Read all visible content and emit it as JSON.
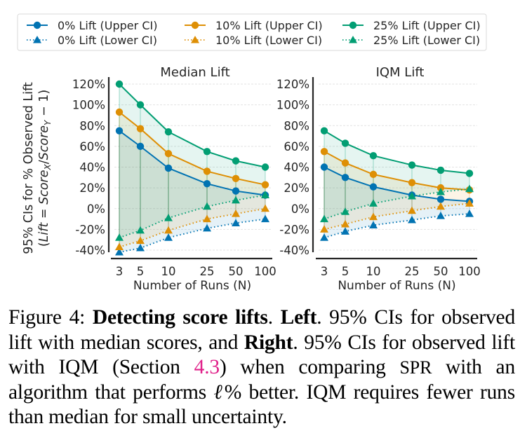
{
  "legend": {
    "entries": [
      {
        "label": "0% Lift (Upper CI)",
        "color": "#0173b2",
        "style": "solid",
        "marker": "circle"
      },
      {
        "label": "10% Lift (Upper CI)",
        "color": "#de8f05",
        "style": "solid",
        "marker": "circle"
      },
      {
        "label": "25% Lift (Upper CI)",
        "color": "#029e73",
        "style": "solid",
        "marker": "circle"
      },
      {
        "label": "0% Lift (Lower CI)",
        "color": "#0173b2",
        "style": "dotted",
        "marker": "triangle"
      },
      {
        "label": "10% Lift (Lower CI)",
        "color": "#de8f05",
        "style": "dotted",
        "marker": "triangle"
      },
      {
        "label": "25% Lift (Lower CI)",
        "color": "#029e73",
        "style": "dotted",
        "marker": "triangle"
      }
    ]
  },
  "ylabel_line1": "95% CIs for % Observed Lift",
  "ylabel_line2": "(Lift = Score",
  "ylabel_sub_x": "X",
  "ylabel_mid": "/Score",
  "ylabel_sub_y": "Y",
  "ylabel_end": " − 1)",
  "chart_data": [
    {
      "type": "line",
      "title": "Median Lift",
      "xlabel": "Number of Runs (N)",
      "ylabel": "95% CIs for % Observed Lift (Lift = Score_X/Score_Y − 1)",
      "x": [
        3,
        5,
        10,
        25,
        50,
        100
      ],
      "x_tick_labels": [
        "3",
        "5",
        "10",
        "25",
        "50",
        "100"
      ],
      "x_scale": "log",
      "ylim": [
        -40,
        120
      ],
      "y_ticks": [
        120,
        100,
        80,
        60,
        40,
        20,
        0,
        -20,
        -40
      ],
      "y_tick_labels": [
        "120%",
        "100%",
        "80%",
        "60%",
        "40%",
        "20%",
        "0%",
        "-20%",
        "-40%"
      ],
      "grid": "horizontal-dashed",
      "series": [
        {
          "name": "0% Lift (Upper CI)",
          "values": [
            75,
            60,
            39,
            24,
            17,
            13
          ]
        },
        {
          "name": "10% Lift (Upper CI)",
          "values": [
            93,
            77,
            53,
            36,
            29,
            23
          ]
        },
        {
          "name": "25% Lift (Upper CI)",
          "values": [
            120,
            100,
            74,
            55,
            46,
            40
          ]
        },
        {
          "name": "0% Lift (Lower CI)",
          "values": [
            -42,
            -38,
            -28,
            -19,
            -14,
            -10
          ]
        },
        {
          "name": "10% Lift (Lower CI)",
          "values": [
            -37,
            -31,
            -21,
            -10,
            -5,
            0
          ]
        },
        {
          "name": "25% Lift (Lower CI)",
          "values": [
            -28,
            -21,
            -9,
            2,
            8,
            13
          ]
        }
      ]
    },
    {
      "type": "line",
      "title": "IQM Lift",
      "xlabel": "Number of Runs (N)",
      "x": [
        3,
        5,
        10,
        25,
        50,
        100
      ],
      "x_tick_labels": [
        "3",
        "5",
        "10",
        "25",
        "50",
        "100"
      ],
      "x_scale": "log",
      "ylim": [
        -40,
        120
      ],
      "y_ticks": [
        120,
        100,
        80,
        60,
        40,
        20,
        0,
        -20,
        -40
      ],
      "y_tick_labels": [
        "120%",
        "100%",
        "80%",
        "60%",
        "40%",
        "20%",
        "0%",
        "-20%",
        "-40%"
      ],
      "grid": "horizontal-dashed",
      "series": [
        {
          "name": "0% Lift (Upper CI)",
          "values": [
            40,
            30,
            21,
            13,
            9,
            7
          ]
        },
        {
          "name": "10% Lift (Upper CI)",
          "values": [
            55,
            44,
            33,
            25,
            20,
            18
          ]
        },
        {
          "name": "25% Lift (Upper CI)",
          "values": [
            75,
            63,
            51,
            42,
            37,
            34
          ]
        },
        {
          "name": "0% Lift (Lower CI)",
          "values": [
            -28,
            -22,
            -16,
            -11,
            -7,
            -5
          ]
        },
        {
          "name": "10% Lift (Lower CI)",
          "values": [
            -20,
            -15,
            -8,
            -2,
            2,
            5
          ]
        },
        {
          "name": "25% Lift (Lower CI)",
          "values": [
            -10,
            -3,
            5,
            12,
            16,
            19
          ]
        }
      ]
    }
  ],
  "caption": {
    "figure_label": "Figure 4: ",
    "bold_title": "Detecting score lifts",
    "sep1": ". ",
    "left_label": "Left",
    "text1": ". 95% CIs for observed lift with median scores, and ",
    "right_label": "Right",
    "text2": ". 95% CIs for observed lift with IQM (Section ",
    "section_link": "4.3",
    "text3": ") when comparing ",
    "spr": "SPR",
    "text4": " with an algorithm that performs ",
    "ell": "ℓ",
    "text5": "% better.  IQM requires fewer runs than median for small uncertainty."
  }
}
